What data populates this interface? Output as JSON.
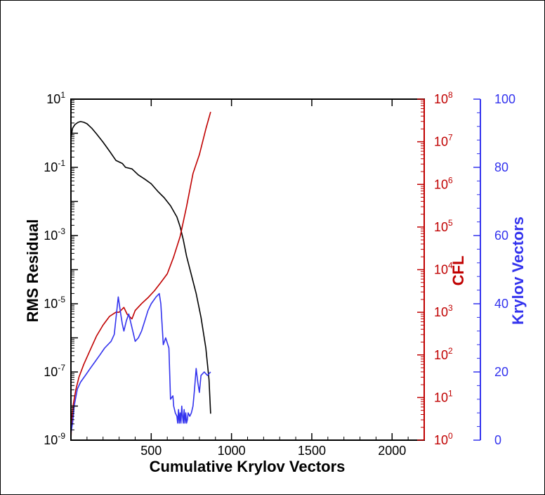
{
  "chart_data": {
    "type": "line",
    "title": "",
    "xlabel": "Cumulative Krylov Vectors",
    "ylabel": "RMS Residual",
    "y2label": "CFL",
    "y3label": "Krylov Vectors",
    "x_range": [
      0,
      2200
    ],
    "x_ticks": [
      500,
      1000,
      1500,
      2000
    ],
    "x_tick_labels": [
      "500",
      "1000",
      "1500",
      "2000"
    ],
    "y_log_range": [
      -9,
      1
    ],
    "y_tick_exponents": [
      1,
      -1,
      -3,
      -5,
      -7,
      -9
    ],
    "y2_log_range": [
      0,
      8
    ],
    "y2_tick_exponents": [
      8,
      7,
      6,
      5,
      4,
      3,
      2,
      1,
      0
    ],
    "y3_range": [
      0,
      100
    ],
    "y3_ticks": [
      100,
      80,
      60,
      40,
      20,
      0
    ],
    "y3_tick_labels": [
      "100",
      "80",
      "60",
      "40",
      "20",
      "0"
    ],
    "grid": false,
    "colors": {
      "rms": "#000000",
      "cfl": "#c00000",
      "krylov": "#3333ee",
      "frame": "#000000"
    },
    "series": [
      {
        "name": "RMS Residual",
        "axis": "left-log",
        "x": [
          0,
          10,
          25,
          45,
          60,
          80,
          100,
          130,
          160,
          200,
          240,
          280,
          320,
          340,
          380,
          420,
          460,
          500,
          540,
          580,
          620,
          660,
          680,
          700,
          720,
          750,
          780,
          810,
          840,
          860,
          870
        ],
        "y": [
          0.7,
          1.4,
          1.8,
          2.1,
          2.2,
          2.1,
          1.9,
          1.4,
          0.95,
          0.55,
          0.3,
          0.16,
          0.13,
          0.1,
          0.09,
          0.06,
          0.045,
          0.033,
          0.02,
          0.013,
          0.0075,
          0.0035,
          0.0018,
          0.00075,
          0.00025,
          7e-05,
          2e-05,
          4e-06,
          5e-07,
          6e-08,
          6e-09
        ]
      },
      {
        "name": "CFL",
        "axis": "right-log",
        "x": [
          0,
          5,
          15,
          30,
          50,
          80,
          120,
          160,
          200,
          240,
          280,
          300,
          330,
          350,
          380,
          400,
          440,
          480,
          520,
          560,
          600,
          640,
          680,
          720,
          760,
          800,
          840,
          870
        ],
        "y": [
          1,
          3,
          7,
          15,
          30,
          60,
          130,
          280,
          500,
          800,
          1000,
          1000,
          1300,
          900,
          700,
          1100,
          1600,
          2200,
          3200,
          5000,
          8000,
          20000,
          60000,
          300000,
          1800000,
          5000000,
          20000000,
          50000000
        ]
      },
      {
        "name": "Krylov Vectors",
        "axis": "right-linear",
        "x": [
          0,
          10,
          20,
          40,
          60,
          90,
          120,
          150,
          180,
          210,
          250,
          270,
          295,
          310,
          320,
          330,
          345,
          360,
          380,
          400,
          420,
          440,
          460,
          480,
          500,
          530,
          550,
          560,
          575,
          590,
          610,
          620,
          635,
          640,
          650,
          660,
          665,
          670,
          675,
          680,
          685,
          690,
          695,
          700,
          705,
          710,
          715,
          720,
          725,
          730,
          740,
          750,
          760,
          770,
          780,
          790,
          800,
          810,
          830,
          850,
          870
        ],
        "y": [
          2,
          5,
          10,
          15,
          17,
          19,
          21,
          23,
          25,
          27,
          29,
          31,
          42,
          37,
          34,
          32,
          35,
          37,
          33,
          29,
          30,
          32,
          35,
          38,
          40,
          42,
          43,
          40,
          28,
          30,
          27,
          12,
          13,
          10,
          8,
          7,
          5,
          9,
          5,
          8,
          5,
          10,
          7,
          5,
          9,
          5,
          8,
          5,
          6,
          8,
          7,
          8,
          10,
          15,
          21,
          17,
          14,
          19,
          20,
          19,
          20
        ]
      }
    ]
  }
}
